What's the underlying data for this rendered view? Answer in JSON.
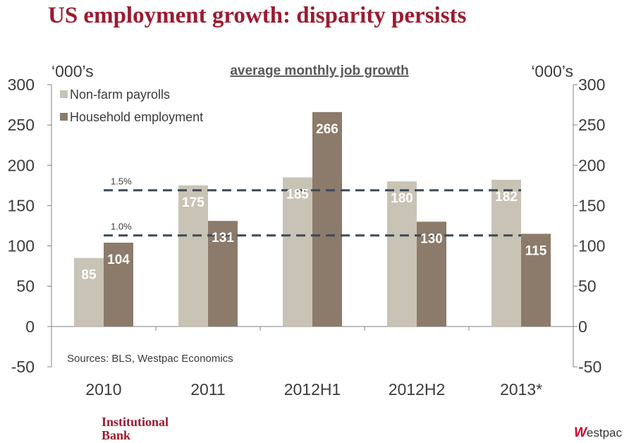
{
  "title": "US employment growth: disparity persists",
  "chart_data": {
    "type": "bar",
    "subtitle": "average monthly job growth",
    "y_unit_left": "‘000’s",
    "y_unit_right": "‘000’s",
    "ylim": [
      -50,
      300
    ],
    "yticks": [
      -50,
      0,
      50,
      100,
      150,
      200,
      250,
      300
    ],
    "categories": [
      "2010",
      "2011",
      "2012H1",
      "2012H2",
      "2013*"
    ],
    "series": [
      {
        "name": "Non-farm payrolls",
        "color": "#c9c3b6",
        "values": [
          85,
          175,
          185,
          180,
          182
        ]
      },
      {
        "name": "Household employment",
        "color": "#8c7b6b",
        "values": [
          104,
          131,
          266,
          130,
          115
        ]
      }
    ],
    "reference_lines": [
      {
        "label": "1.5%",
        "value": 169
      },
      {
        "label": "1.0%",
        "value": 113
      }
    ],
    "source": "Sources: BLS, Westpac Economics"
  },
  "footer": {
    "left_line1": "Institutional",
    "left_line2": "Bank",
    "brand": "estpac",
    "brand_mark": "W"
  }
}
